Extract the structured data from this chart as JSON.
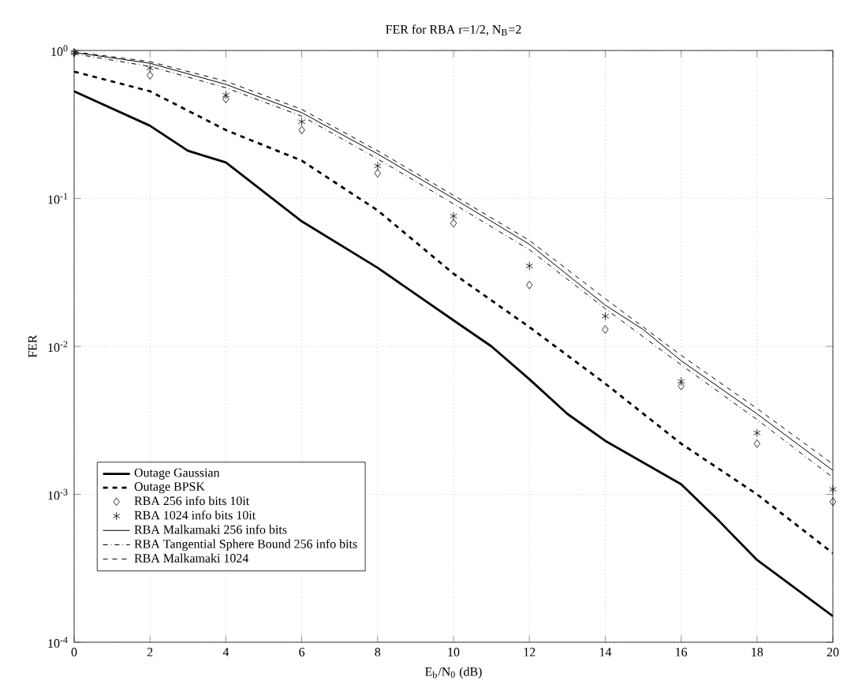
{
  "chart_data": {
    "type": "line",
    "title": "FER for RBA r=1/2, N$_{B}$=2",
    "xlabel": "E$_{b}$/N$_{0}$ (dB)",
    "ylabel": "FER",
    "log": "y",
    "grid": true,
    "legend": "bottom left",
    "xlim": [
      0,
      20
    ],
    "xticks": [
      0,
      2,
      4,
      6,
      8,
      10,
      12,
      14,
      16,
      18,
      20
    ],
    "ylim": [
      0.0001,
      1
    ],
    "yticks": [
      {
        "value": 0.0001,
        "label": "10$^{-4}$"
      },
      {
        "value": 0.001,
        "label": "10$^{-3}$"
      },
      {
        "value": 0.01,
        "label": "10$^{-2}$"
      },
      {
        "value": 0.1,
        "label": "10$^{-1}$"
      },
      {
        "value": 1,
        "label": "10$^{0}$"
      }
    ],
    "series": [
      {
        "name": "Outage Gaussian",
        "line_style": "solid",
        "color": "#000000",
        "x": [
          0,
          2,
          3,
          4,
          6,
          8,
          10,
          11,
          12,
          13,
          14,
          16,
          17,
          18,
          20
        ],
        "values": [
          0.53,
          0.31,
          0.21,
          0.175,
          0.07,
          0.034,
          0.015,
          0.01,
          0.006,
          0.0035,
          0.0023,
          0.00117,
          0.00066,
          0.00036,
          0.00015
        ]
      },
      {
        "name": "Outage BPSK",
        "line_style": "dashed",
        "color": "#000000",
        "x": [
          0,
          2,
          4,
          6,
          8,
          10,
          12,
          14,
          16,
          18,
          20
        ],
        "values": [
          0.72,
          0.53,
          0.29,
          0.18,
          0.083,
          0.031,
          0.0135,
          0.0056,
          0.0022,
          0.001,
          0.0004
        ]
      },
      {
        "name": "RBA 256 info bits 10it",
        "type": "scatter",
        "marker": "diamond",
        "color": "#000000",
        "x": [
          0,
          2,
          4,
          6,
          8,
          10,
          12,
          14,
          16,
          18,
          20
        ],
        "values": [
          0.97,
          0.68,
          0.47,
          0.29,
          0.148,
          0.068,
          0.026,
          0.013,
          0.0054,
          0.0022,
          0.00089
        ]
      },
      {
        "name": "RBA 1024 info bits 10it",
        "type": "scatter",
        "marker": "cross",
        "color": "#000000",
        "x": [
          0,
          2,
          4,
          6,
          8,
          10,
          12,
          14,
          16,
          18,
          20
        ],
        "values": [
          0.97,
          0.76,
          0.5,
          0.33,
          0.166,
          0.076,
          0.035,
          0.016,
          0.0058,
          0.0026,
          0.00108
        ]
      },
      {
        "name": "RBA Malkamaki 256 info bits",
        "line_style": "solid",
        "color": "#000000",
        "x": [
          0,
          2,
          4,
          6,
          8,
          10,
          12,
          14,
          15,
          16,
          18,
          20
        ],
        "values": [
          0.97,
          0.82,
          0.59,
          0.38,
          0.2,
          0.1,
          0.049,
          0.019,
          0.013,
          0.008,
          0.0035,
          0.00145
        ]
      },
      {
        "name": "RBA Tangential Sphere Bound 256 info bits",
        "line_style": "dashdot",
        "color": "#000000",
        "x": [
          0,
          2,
          4,
          6,
          8,
          10,
          12,
          14,
          16,
          18,
          20
        ],
        "values": [
          0.95,
          0.78,
          0.56,
          0.36,
          0.185,
          0.092,
          0.045,
          0.018,
          0.0075,
          0.0032,
          0.0013
        ]
      },
      {
        "name": "RBA Malkamaki 1024",
        "line_style": "dashed",
        "color": "#000000",
        "x": [
          0,
          2,
          4,
          6,
          8,
          10,
          12,
          14,
          16,
          18,
          20
        ],
        "values": [
          0.98,
          0.84,
          0.62,
          0.4,
          0.21,
          0.105,
          0.052,
          0.021,
          0.0087,
          0.0038,
          0.0016
        ]
      }
    ]
  }
}
